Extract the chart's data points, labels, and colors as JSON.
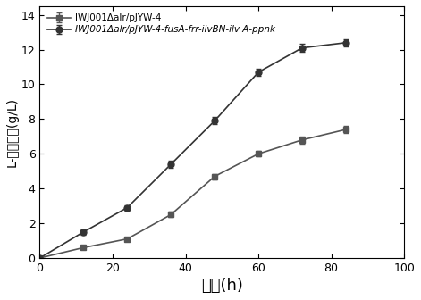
{
  "series1": {
    "label": "IWJ001Δalr/pJYW-4",
    "x": [
      0,
      12,
      24,
      36,
      48,
      60,
      72,
      84
    ],
    "y": [
      0.0,
      0.6,
      1.1,
      2.5,
      4.7,
      6.0,
      6.8,
      7.4
    ],
    "yerr": [
      0.0,
      0.1,
      0.1,
      0.15,
      0.15,
      0.15,
      0.2,
      0.2
    ],
    "marker": "s",
    "color": "#555555",
    "markersize": 5
  },
  "series2": {
    "label_plain": "IWJ001Δalr/pJYW-4-",
    "label_italic": "fusA-frr-ilvBN-ilv A-ppnk",
    "label_full": "IWJ001Δalr/pJYW-4-fusA-frr-ilvBN-ilv A-ppnk",
    "x": [
      0,
      12,
      24,
      36,
      48,
      60,
      72,
      84
    ],
    "y": [
      0.0,
      1.5,
      2.9,
      5.4,
      7.9,
      10.7,
      12.1,
      12.4
    ],
    "yerr": [
      0.0,
      0.15,
      0.15,
      0.2,
      0.2,
      0.2,
      0.25,
      0.2
    ],
    "marker": "o",
    "color": "#333333",
    "markersize": 5
  },
  "xlabel": "时间(h)",
  "ylabel": "L-异亮氨酸(g/L)",
  "xlim": [
    0,
    100
  ],
  "ylim": [
    0,
    14.5
  ],
  "xticks": [
    0,
    20,
    40,
    60,
    80,
    100
  ],
  "yticks": [
    0,
    2,
    4,
    6,
    8,
    10,
    12,
    14
  ],
  "background_color": "#ffffff",
  "legend_fontsize": 7.5,
  "xlabel_fontsize": 13,
  "ylabel_fontsize": 10,
  "tick_fontsize": 9
}
